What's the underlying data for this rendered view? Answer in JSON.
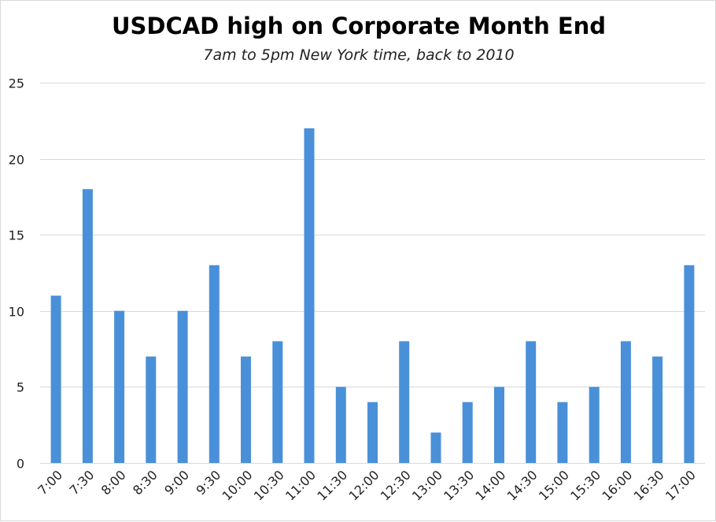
{
  "chart_data": {
    "type": "bar",
    "title": "USDCAD high on Corporate Month End",
    "subtitle": "7am to 5pm New York time, back to 2010",
    "xlabel": "",
    "ylabel": "",
    "categories": [
      "7:00",
      "7:30",
      "8:00",
      "8:30",
      "9:00",
      "9:30",
      "10:00",
      "10:30",
      "11:00",
      "11:30",
      "12:00",
      "12:30",
      "13:00",
      "13:30",
      "14:00",
      "14:30",
      "15:00",
      "15:30",
      "16:00",
      "16:30",
      "17:00"
    ],
    "values": [
      11,
      18,
      10,
      7,
      10,
      13,
      7,
      8,
      22,
      5,
      4,
      8,
      2,
      4,
      5,
      8,
      4,
      5,
      8,
      7,
      13
    ],
    "ylim": [
      0,
      25
    ],
    "yticks": [
      0,
      5,
      10,
      15,
      20,
      25
    ],
    "grid": true,
    "legend": "none",
    "bar_color": "#4a90d9",
    "grid_color": "#d9d9d9"
  }
}
